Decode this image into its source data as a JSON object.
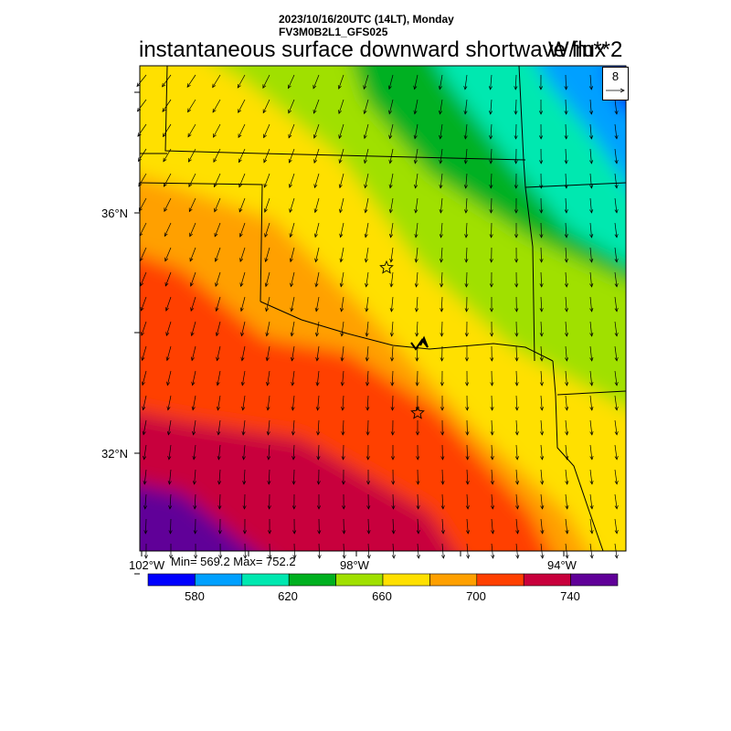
{
  "header": {
    "datetime": "2023/10/16/20UTC (14LT), Monday",
    "model": "FV3M0B2L1_GFS025"
  },
  "title": {
    "main": "instantaneous surface downward shortwave flux",
    "units": "W/m**2"
  },
  "stats": {
    "text": "Min= 569.2 Max= 752.2"
  },
  "lat_labels": [
    "36°N",
    "32°N"
  ],
  "lon_labels": [
    "102°W",
    "98°W",
    "94°W"
  ],
  "vector_reference": {
    "label": "8",
    "icon": "reference-arrow-icon"
  },
  "colorbar": {
    "colors": [
      "#0000ff",
      "#00a0ff",
      "#00e8b0",
      "#00b020",
      "#a0e000",
      "#ffe000",
      "#ffa000",
      "#ff4000",
      "#c8003c",
      "#600098"
    ],
    "labels": [
      "580",
      "620",
      "660",
      "700",
      "740"
    ]
  },
  "markers": {
    "icon": "star-icon",
    "count": 2
  }
}
